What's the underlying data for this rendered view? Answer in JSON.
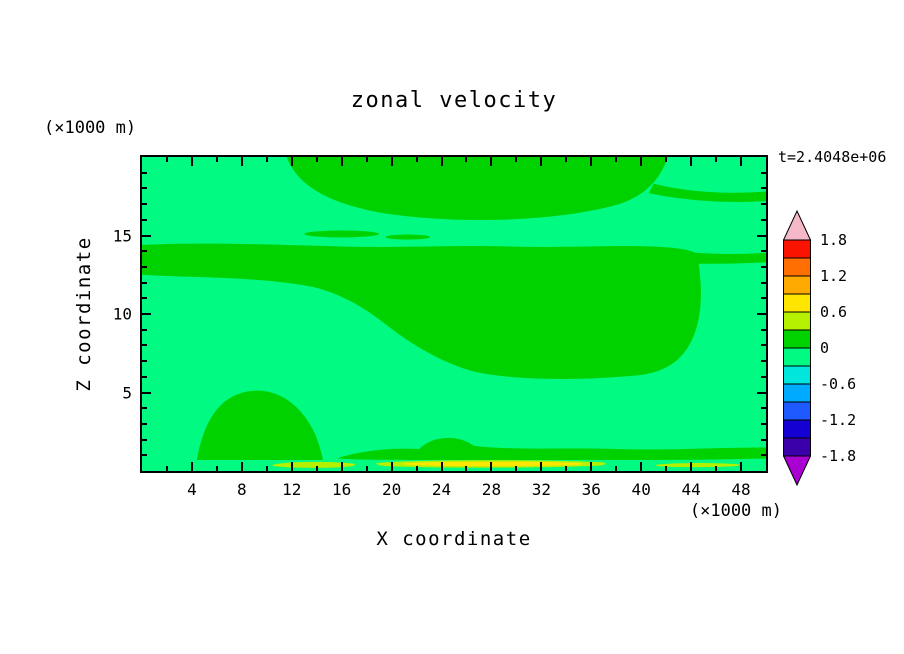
{
  "header": {
    "title": "zonal velocity",
    "time_label": "t=2.4048e+06"
  },
  "x_axis": {
    "label": "X coordinate",
    "unit": "(×1000 m)",
    "range": [
      0,
      50
    ],
    "ticks": [
      4,
      8,
      12,
      16,
      20,
      24,
      28,
      32,
      36,
      40,
      44,
      48
    ],
    "minor_step": 2
  },
  "y_axis": {
    "label": "Z coordinate",
    "unit": "(×1000 m)",
    "range": [
      0,
      20
    ],
    "ticks": [
      5,
      10,
      15
    ],
    "minor_step": 1
  },
  "colorbar": {
    "labels": [
      "1.8",
      "1.2",
      "0.6",
      "0",
      "-0.6",
      "-1.2",
      "-1.8"
    ],
    "over_color": "#f5b8c8",
    "under_color": "#aa00d2",
    "segments": [
      {
        "from": 1.5,
        "to": 1.8,
        "color": "#fa1400"
      },
      {
        "from": 1.2,
        "to": 1.5,
        "color": "#ff6e00"
      },
      {
        "from": 0.9,
        "to": 1.2,
        "color": "#ffaa00"
      },
      {
        "from": 0.6,
        "to": 0.9,
        "color": "#ffe600"
      },
      {
        "from": 0.3,
        "to": 0.6,
        "color": "#b4f000"
      },
      {
        "from": 0.0,
        "to": 0.3,
        "color": "#00d200"
      },
      {
        "from": -0.3,
        "to": 0.0,
        "color": "#00fa82"
      },
      {
        "from": -0.6,
        "to": -0.3,
        "color": "#00e6dc"
      },
      {
        "from": -0.9,
        "to": -0.6,
        "color": "#00aaff"
      },
      {
        "from": -1.2,
        "to": -0.9,
        "color": "#1e5aff"
      },
      {
        "from": -1.5,
        "to": -1.2,
        "color": "#1400d2"
      },
      {
        "from": -1.8,
        "to": -1.5,
        "color": "#3c00aa"
      }
    ]
  },
  "field_colors": {
    "pos_band": "#00d200",
    "neg_band": "#00fa82",
    "streak": "#b4f000",
    "streak_core": "#ffe600"
  },
  "chart_data": {
    "type": "heatmap",
    "subtype": "filled-contour",
    "title": "zonal velocity",
    "xlabel": "X coordinate (×1000 m)",
    "ylabel": "Z coordinate (×1000 m)",
    "xlim": [
      0,
      50
    ],
    "ylim": [
      0,
      20
    ],
    "time_annotation": "t=2.4048e+06",
    "contour_interval": 0.3,
    "levels": [
      -1.8,
      -1.5,
      -1.2,
      -0.9,
      -0.6,
      -0.3,
      0,
      0.3,
      0.6,
      0.9,
      1.2,
      1.5,
      1.8
    ],
    "colorbar_tick_labels": [
      1.8,
      1.2,
      0.6,
      0,
      -0.6,
      -1.2,
      -1.8
    ],
    "field_regions": [
      {
        "band": "0 to 0.3",
        "color": "#00d200",
        "areas": [
          "upper layer x≈12–42, z≈16–20",
          "thin tongue reaching x=50 at z≈17.5",
          "mid layer x≈0–45, z≈6–14.4 (narrows to band z≈12.4–14.4 at left edge)",
          "thin arm to right edge at z≈13.4–14.2",
          "thin filaments near z≈15 at x≈13–23",
          "lower-left hill x≈4–14.5, z≈0.7–5",
          "near-surface band x≈16–50, z≈0.7–1.5 with bump to z≈2.4 at x≈22–27"
        ]
      },
      {
        "band": "-0.3 to 0",
        "color": "#00fa82",
        "areas": [
          "background over the rest of the domain (majority of field)"
        ]
      },
      {
        "band": "0.3 to 0.6",
        "color": "#b4f000",
        "areas": [
          "surface streaks at z≈0.3–0.6 for x≈10.5–17, x≈19–37, x≈41–48"
        ]
      },
      {
        "band": "0.6 to 0.9",
        "color": "#ffe600",
        "areas": [
          "core of surface streak x≈21–35 at z≈0.4"
        ]
      }
    ]
  }
}
